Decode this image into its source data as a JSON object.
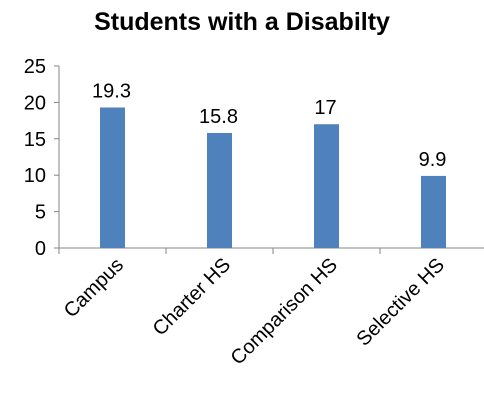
{
  "chart_data": {
    "type": "bar",
    "title": "Students with a Disabilty",
    "categories": [
      "Campus",
      "Charter HS",
      "Comparison HS",
      "Selective HS"
    ],
    "values": [
      19.3,
      15.8,
      17,
      9.9
    ],
    "value_labels": [
      "19.3",
      "15.8",
      "17",
      "9.9"
    ],
    "ylim": [
      0,
      25
    ],
    "yticks": [
      0,
      5,
      10,
      15,
      20,
      25
    ],
    "xlabel": "",
    "ylabel": "",
    "bar_color": "#4F81BD",
    "grid": false,
    "legend": "none"
  }
}
